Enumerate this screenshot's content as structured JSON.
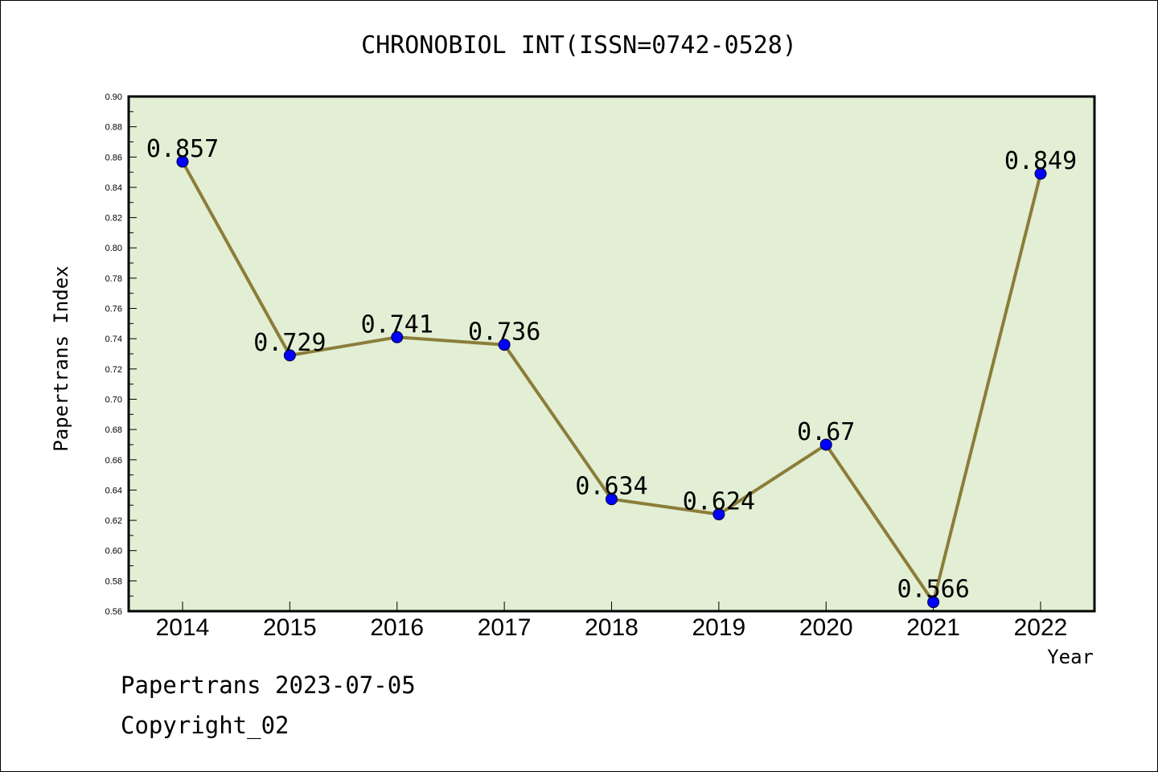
{
  "chart_data": {
    "type": "line",
    "title": "CHRONOBIOL INT(ISSN=0742-0528)",
    "xlabel": "Year",
    "ylabel": "Papertrans Index",
    "categories": [
      "2014",
      "2015",
      "2016",
      "2017",
      "2018",
      "2019",
      "2020",
      "2021",
      "2022"
    ],
    "values": [
      0.857,
      0.729,
      0.741,
      0.736,
      0.634,
      0.624,
      0.67,
      0.566,
      0.849
    ],
    "data_labels": [
      "0.857",
      "0.729",
      "0.741",
      "0.736",
      "0.634",
      "0.624",
      "0.67",
      "0.566",
      "0.849"
    ],
    "ylim": [
      0.56,
      0.9
    ],
    "yticks": [
      "0.56",
      "0.58",
      "0.60",
      "0.62",
      "0.64",
      "0.66",
      "0.68",
      "0.70",
      "0.72",
      "0.74",
      "0.76",
      "0.78",
      "0.80",
      "0.82",
      "0.84",
      "0.86",
      "0.88",
      "0.90"
    ],
    "grid": false,
    "colors": {
      "plot_background": "#e2efd4",
      "line": "#8b7d3a",
      "marker": "#0000ff",
      "axis": "#000000"
    }
  },
  "footer": {
    "line1": "Papertrans 2023-07-05",
    "line2": "Copyright_02"
  }
}
